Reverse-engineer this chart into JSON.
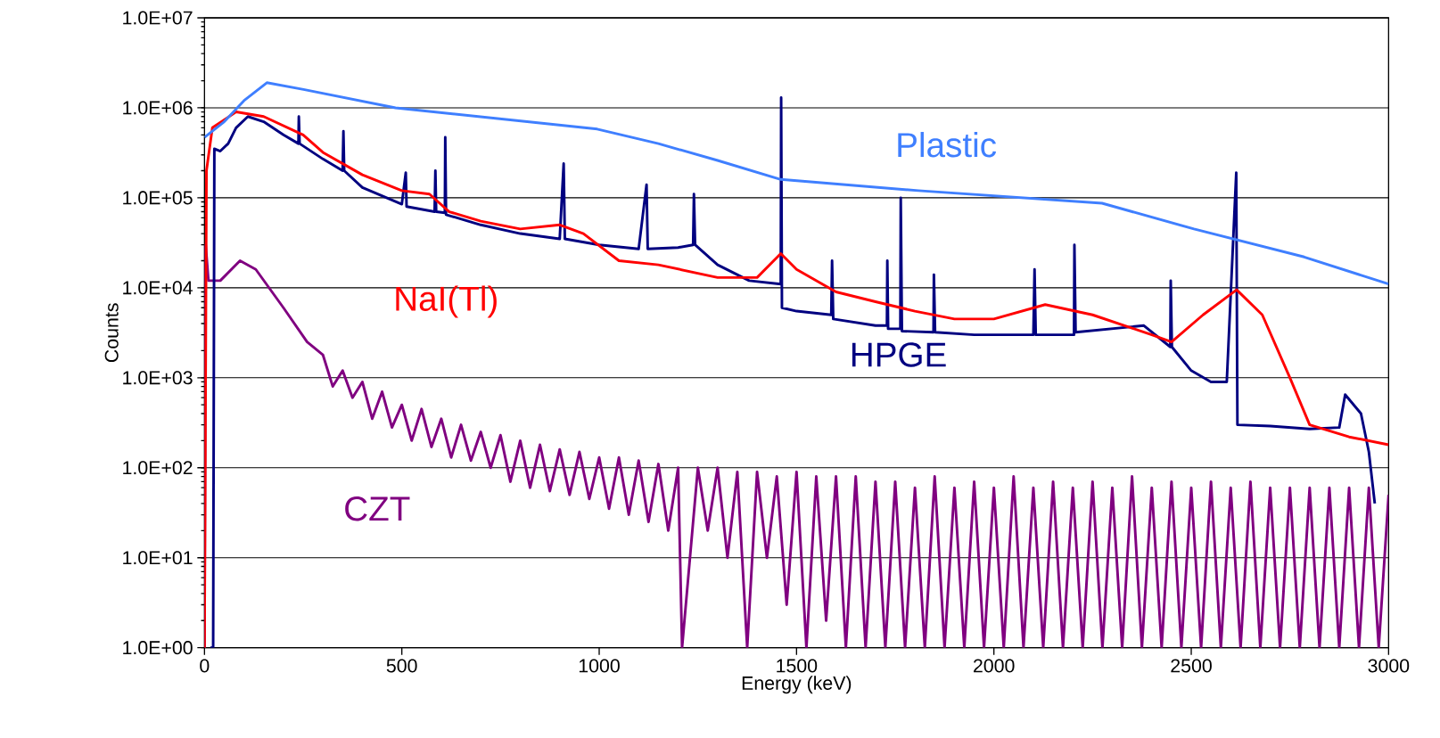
{
  "chart_data": {
    "type": "line",
    "xlabel": "Energy (keV)",
    "ylabel": "Counts",
    "log": "y",
    "grid": "y",
    "marker": "none",
    "line_style": "solid",
    "xlim": [
      0,
      3000
    ],
    "xticks": [
      0,
      500,
      1000,
      1500,
      2000,
      2500,
      3000
    ],
    "ylim": [
      1,
      10000000
    ],
    "yticks": [
      {
        "value": 1,
        "label": "1.0E+00"
      },
      {
        "value": 10,
        "label": "1.0E+01"
      },
      {
        "value": 100,
        "label": "1.0E+02"
      },
      {
        "value": 1000,
        "label": "1.0E+03"
      },
      {
        "value": 10000,
        "label": "1.0E+04"
      },
      {
        "value": 100000,
        "label": "1.0E+05"
      },
      {
        "value": 1000000,
        "label": "1.0E+06"
      },
      {
        "value": 10000000,
        "label": "1.0E+07"
      }
    ],
    "series": [
      {
        "name": "CZT",
        "color": "#800080",
        "x": [
          0,
          3,
          10,
          40,
          90,
          130,
          200,
          260,
          300,
          325,
          350,
          375,
          400,
          425,
          450,
          475,
          500,
          525,
          550,
          575,
          600,
          625,
          650,
          675,
          700,
          725,
          750,
          775,
          800,
          825,
          850,
          875,
          900,
          925,
          950,
          975,
          1000,
          1025,
          1050,
          1075,
          1100,
          1125,
          1150,
          1175,
          1200,
          1210,
          1250,
          1275,
          1300,
          1325,
          1350,
          1375,
          1400,
          1425,
          1450,
          1475,
          1500,
          1525,
          1550,
          1575,
          1600,
          1625,
          1650,
          1675,
          1700,
          1725,
          1750,
          1775,
          1800,
          1825,
          1850,
          1875,
          1900,
          1925,
          1950,
          1975,
          2000,
          2025,
          2050,
          2075,
          2100,
          2125,
          2150,
          2175,
          2200,
          2225,
          2250,
          2275,
          2300,
          2325,
          2350,
          2375,
          2400,
          2425,
          2450,
          2475,
          2500,
          2525,
          2550,
          2575,
          2600,
          2625,
          2650,
          2675,
          2700,
          2725,
          2750,
          2775,
          2800,
          2825,
          2850,
          2875,
          2900,
          2925,
          2950,
          2975,
          3000
        ],
        "values": [
          1,
          30000,
          12000,
          12000,
          20000,
          16000,
          6000,
          2500,
          1800,
          800,
          1200,
          600,
          900,
          350,
          700,
          280,
          500,
          200,
          450,
          170,
          350,
          130,
          300,
          120,
          250,
          100,
          230,
          70,
          200,
          60,
          180,
          55,
          160,
          50,
          150,
          45,
          130,
          35,
          130,
          30,
          120,
          25,
          110,
          20,
          100,
          1,
          100,
          20,
          100,
          10,
          90,
          1,
          90,
          10,
          80,
          3,
          90,
          1,
          80,
          2,
          80,
          1,
          80,
          1,
          70,
          1,
          70,
          1,
          60,
          1,
          80,
          1,
          60,
          1,
          70,
          1,
          60,
          1,
          80,
          1,
          60,
          1,
          70,
          1,
          60,
          1,
          70,
          1,
          60,
          1,
          80,
          1,
          60,
          1,
          70,
          1,
          60,
          1,
          70,
          1,
          60,
          1,
          70,
          1,
          60,
          1,
          60,
          1,
          60,
          1,
          60,
          1,
          60,
          1,
          60,
          1,
          50
        ]
      },
      {
        "name": "HPGE",
        "color": "#000080",
        "x": [
          15,
          22,
          25,
          40,
          60,
          80,
          110,
          150,
          200,
          238,
          239,
          241,
          300,
          350,
          352,
          354,
          400,
          500,
          510,
          512,
          583,
          585,
          587,
          609,
          610,
          612,
          700,
          800,
          900,
          910,
          913,
          1000,
          1100,
          1120,
          1123,
          1200,
          1238,
          1240,
          1243,
          1300,
          1380,
          1460,
          1461,
          1463,
          1500,
          1588,
          1590,
          1593,
          1700,
          1729,
          1730,
          1732,
          1763,
          1764,
          1767,
          1847,
          1848,
          1851,
          1950,
          2100,
          2103,
          2106,
          2203,
          2204,
          2207,
          2380,
          2447,
          2448,
          2451,
          2500,
          2550,
          2590,
          2614,
          2617,
          2700,
          2800,
          2875,
          2890,
          2930,
          2950,
          2965
        ],
        "values": [
          1,
          1,
          350000,
          330000,
          400000,
          600000,
          800000,
          700000,
          500000,
          400000,
          800000,
          400000,
          270000,
          200000,
          550000,
          200000,
          130000,
          85000,
          190000,
          80000,
          70000,
          200000,
          70000,
          68000,
          470000,
          65000,
          50000,
          40000,
          35000,
          240000,
          35000,
          30000,
          27000,
          140000,
          27000,
          28000,
          30000,
          110000,
          30000,
          18000,
          12000,
          11000,
          1300000,
          6000,
          5500,
          5000,
          20000,
          4500,
          3800,
          3800,
          20000,
          3500,
          3500,
          100000,
          3300,
          3200,
          14000,
          3200,
          3000,
          3000,
          16000,
          3000,
          3000,
          30000,
          3200,
          3800,
          2200,
          12000,
          2200,
          1200,
          900,
          900,
          190000,
          300,
          290,
          270,
          280,
          650,
          400,
          150,
          40
        ]
      },
      {
        "name": "NaI(Tl)",
        "color": "#ff0000",
        "x": [
          0,
          5,
          20,
          80,
          150,
          250,
          300,
          400,
          500,
          570,
          620,
          700,
          800,
          900,
          960,
          1050,
          1150,
          1300,
          1400,
          1460,
          1500,
          1600,
          1700,
          1800,
          1900,
          2000,
          2130,
          2250,
          2400,
          2450,
          2530,
          2615,
          2680,
          2750,
          2800,
          2900,
          3000
        ],
        "values": [
          1,
          200000,
          600000,
          900000,
          800000,
          500000,
          320000,
          180000,
          120000,
          110000,
          70000,
          55000,
          45000,
          50000,
          40000,
          20000,
          18000,
          13000,
          13000,
          24000,
          16000,
          9000,
          7000,
          5500,
          4500,
          4500,
          6500,
          5000,
          3000,
          2500,
          5000,
          9500,
          5000,
          1000,
          300,
          220,
          180
        ]
      },
      {
        "name": "Plastic",
        "color": "#3f7fff",
        "x": [
          0,
          50,
          100,
          158,
          251,
          484,
          995,
          1150,
          1300,
          1460,
          1809,
          2274,
          2507,
          2786,
          3000
        ],
        "values": [
          470000,
          700000,
          1200000,
          1900000,
          1600000,
          1000000,
          580000,
          400000,
          260000,
          160000,
          120000,
          87000,
          45000,
          22000,
          11000
        ]
      }
    ]
  }
}
